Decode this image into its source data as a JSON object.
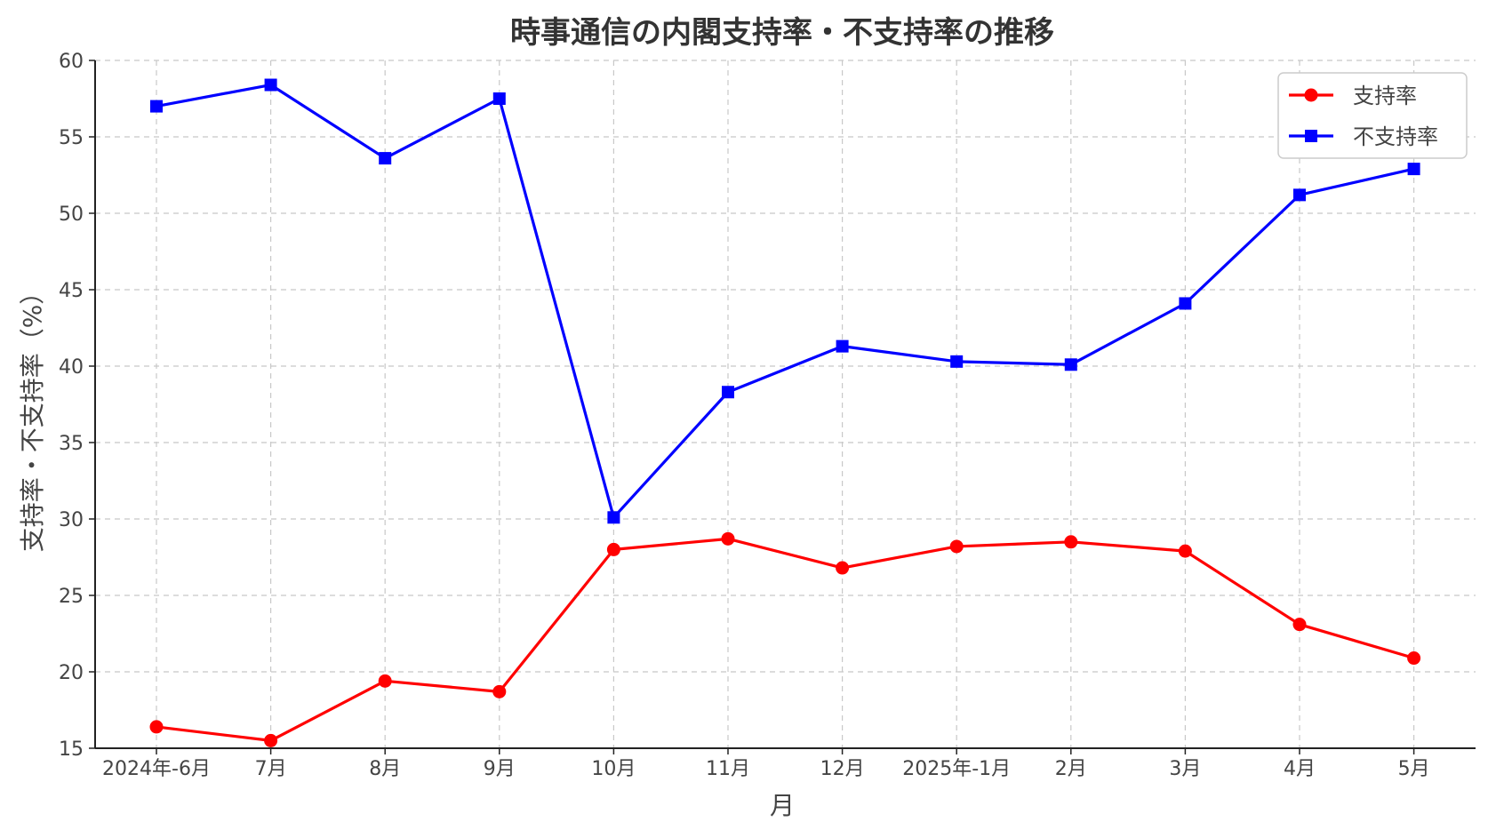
{
  "chart_data": {
    "type": "line",
    "title": "時事通信の内閣支持率・不支持率の推移",
    "xlabel": "月",
    "ylabel": "支持率・不支持率（%）",
    "categories": [
      "2024年-6月",
      "7月",
      "8月",
      "9月",
      "10月",
      "11月",
      "12月",
      "2025年-1月",
      "2月",
      "3月",
      "4月",
      "5月"
    ],
    "ylim": [
      15,
      60
    ],
    "yticks": [
      15,
      20,
      25,
      30,
      35,
      40,
      45,
      50,
      55,
      60
    ],
    "grid": true,
    "legend_position": "top-right",
    "series": [
      {
        "name": "支持率",
        "color": "#ff0000",
        "marker": "circle",
        "values": [
          16.4,
          15.5,
          19.4,
          18.7,
          28.0,
          28.7,
          26.8,
          28.2,
          28.5,
          27.9,
          23.1,
          20.9
        ]
      },
      {
        "name": "不支持率",
        "color": "#0000ff",
        "marker": "square",
        "values": [
          57.0,
          58.4,
          53.6,
          57.5,
          30.1,
          38.3,
          41.3,
          40.3,
          40.1,
          44.1,
          51.2,
          52.9
        ]
      }
    ]
  }
}
